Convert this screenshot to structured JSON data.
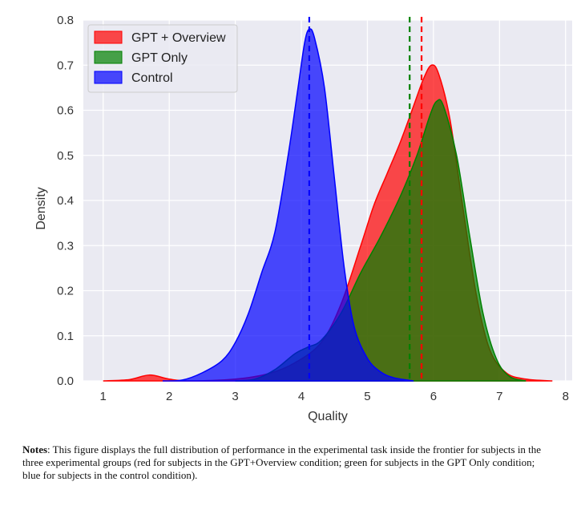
{
  "chart_data": {
    "type": "area",
    "title": "",
    "xlabel": "Quality",
    "ylabel": "Density",
    "xlim": [
      0.7,
      8.1
    ],
    "ylim": [
      0,
      0.8
    ],
    "xticks": [
      "1",
      "2",
      "3",
      "4",
      "5",
      "6",
      "7",
      "8"
    ],
    "yticks": [
      "0.0",
      "0.1",
      "0.2",
      "0.3",
      "0.4",
      "0.5",
      "0.6",
      "0.7",
      "0.8"
    ],
    "grid": true,
    "legend_position": "top-left",
    "series": [
      {
        "name": "GPT + Overview",
        "color": "#ff0000",
        "mean": 5.82,
        "points": [
          [
            1.0,
            0.0
          ],
          [
            1.4,
            0.003
          ],
          [
            1.7,
            0.013
          ],
          [
            2.0,
            0.004
          ],
          [
            2.3,
            0.0
          ],
          [
            3.0,
            0.004
          ],
          [
            3.5,
            0.016
          ],
          [
            3.9,
            0.04
          ],
          [
            4.3,
            0.085
          ],
          [
            4.6,
            0.17
          ],
          [
            4.9,
            0.3
          ],
          [
            5.1,
            0.39
          ],
          [
            5.3,
            0.46
          ],
          [
            5.5,
            0.53
          ],
          [
            5.7,
            0.61
          ],
          [
            5.85,
            0.67
          ],
          [
            5.97,
            0.7
          ],
          [
            6.08,
            0.68
          ],
          [
            6.25,
            0.58
          ],
          [
            6.45,
            0.38
          ],
          [
            6.65,
            0.19
          ],
          [
            6.85,
            0.07
          ],
          [
            7.1,
            0.018
          ],
          [
            7.4,
            0.004
          ],
          [
            7.8,
            0.0
          ]
        ]
      },
      {
        "name": "GPT Only",
        "color": "#008000",
        "mean": 5.64,
        "points": [
          [
            3.0,
            0.0
          ],
          [
            3.3,
            0.004
          ],
          [
            3.6,
            0.025
          ],
          [
            3.9,
            0.06
          ],
          [
            4.1,
            0.075
          ],
          [
            4.3,
            0.09
          ],
          [
            4.6,
            0.15
          ],
          [
            4.9,
            0.24
          ],
          [
            5.2,
            0.32
          ],
          [
            5.5,
            0.41
          ],
          [
            5.75,
            0.5
          ],
          [
            5.95,
            0.59
          ],
          [
            6.05,
            0.62
          ],
          [
            6.15,
            0.61
          ],
          [
            6.35,
            0.5
          ],
          [
            6.55,
            0.32
          ],
          [
            6.75,
            0.15
          ],
          [
            6.95,
            0.05
          ],
          [
            7.15,
            0.01
          ],
          [
            7.4,
            0.0
          ]
        ]
      },
      {
        "name": "Control",
        "color": "#0000ff",
        "mean": 4.12,
        "points": [
          [
            1.9,
            0.0
          ],
          [
            2.2,
            0.002
          ],
          [
            2.5,
            0.018
          ],
          [
            2.8,
            0.045
          ],
          [
            3.0,
            0.085
          ],
          [
            3.2,
            0.15
          ],
          [
            3.4,
            0.24
          ],
          [
            3.6,
            0.33
          ],
          [
            3.8,
            0.5
          ],
          [
            3.95,
            0.65
          ],
          [
            4.05,
            0.75
          ],
          [
            4.12,
            0.78
          ],
          [
            4.2,
            0.76
          ],
          [
            4.35,
            0.65
          ],
          [
            4.5,
            0.45
          ],
          [
            4.65,
            0.25
          ],
          [
            4.8,
            0.12
          ],
          [
            5.0,
            0.05
          ],
          [
            5.2,
            0.02
          ],
          [
            5.4,
            0.007
          ],
          [
            5.7,
            0.0
          ]
        ]
      }
    ]
  },
  "notes": {
    "label": "Notes",
    "text": ": This figure displays the full distribution of performance in the experimental task inside the frontier for subjects in the three experimental groups (red for subjects in the GPT+Overview condition; green for subjects in the GPT Only condition; blue for subjects in the control condition)."
  }
}
